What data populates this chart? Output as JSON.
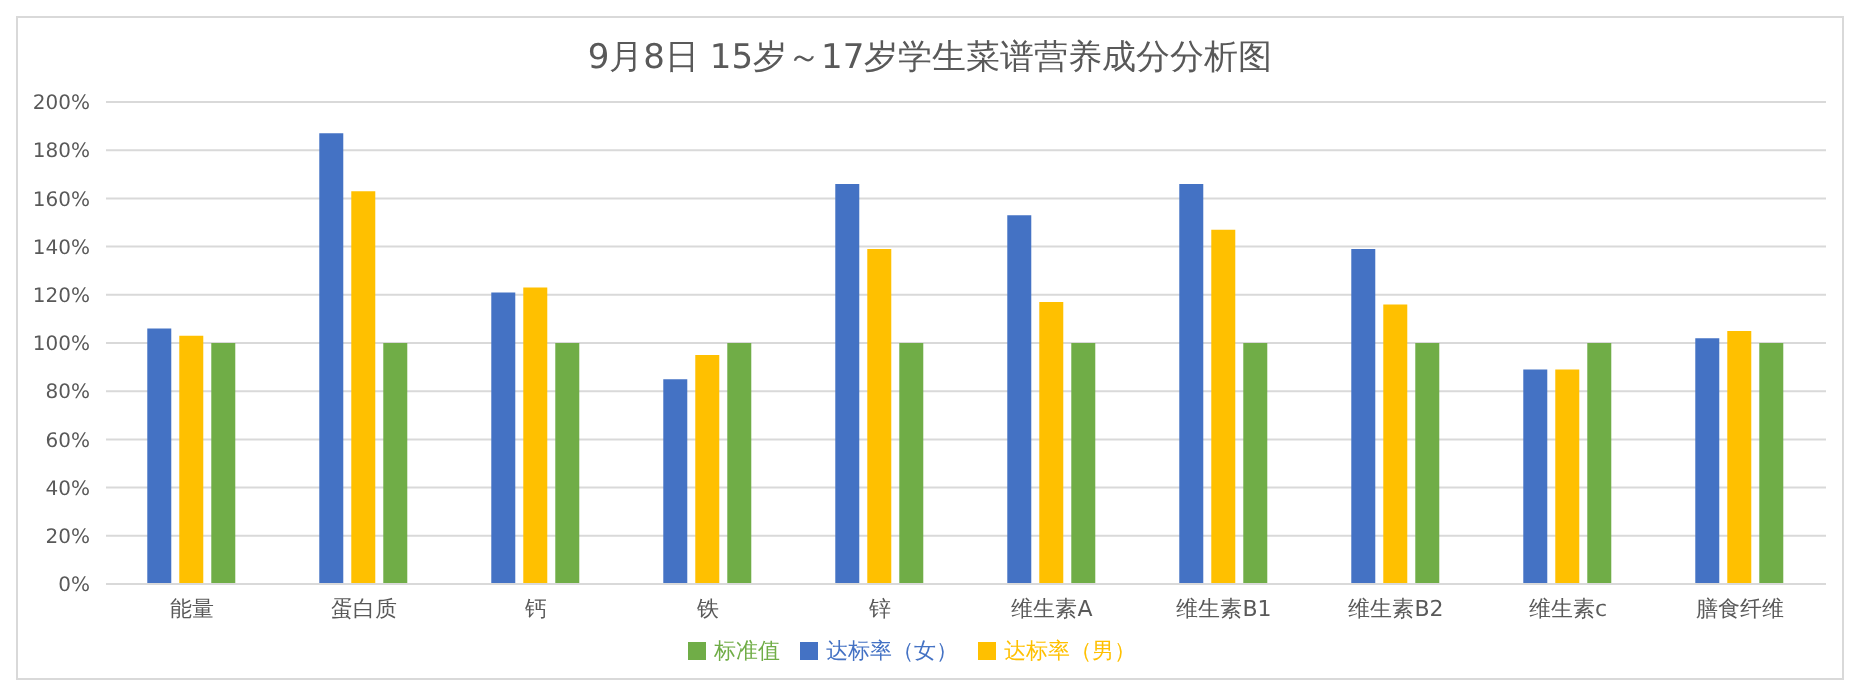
{
  "chart_data": {
    "type": "bar",
    "title": "9月8日 15岁～17岁学生菜谱营养成分分析图",
    "categories": [
      "能量",
      "蛋白质",
      "钙",
      "铁",
      "锌",
      "维生素A",
      "维生素B1",
      "维生素B2",
      "维生素c",
      "膳食纤维"
    ],
    "series": [
      {
        "name": "达标率（女）",
        "color": "#4472c4",
        "values": [
          106,
          187,
          121,
          85,
          166,
          153,
          166,
          139,
          89,
          102
        ]
      },
      {
        "name": "达标率（男）",
        "color": "#ffc000",
        "values": [
          103,
          163,
          123,
          95,
          139,
          117,
          147,
          116,
          89,
          105
        ]
      },
      {
        "name": "标准值",
        "color": "#70ad47",
        "values": [
          100,
          100,
          100,
          100,
          100,
          100,
          100,
          100,
          100,
          100
        ]
      }
    ],
    "ylim": [
      0,
      200
    ],
    "yticks": [
      {
        "value": 0,
        "label": "0%"
      },
      {
        "value": 20,
        "label": "20%"
      },
      {
        "value": 40,
        "label": "40%"
      },
      {
        "value": 60,
        "label": "60%"
      },
      {
        "value": 80,
        "label": "80%"
      },
      {
        "value": 100,
        "label": "100%"
      },
      {
        "value": 120,
        "label": "120%"
      },
      {
        "value": 140,
        "label": "140%"
      },
      {
        "value": 160,
        "label": "160%"
      },
      {
        "value": 180,
        "label": "180%"
      },
      {
        "value": 200,
        "label": "200%"
      }
    ],
    "grid": "y",
    "legend": "bottom"
  }
}
